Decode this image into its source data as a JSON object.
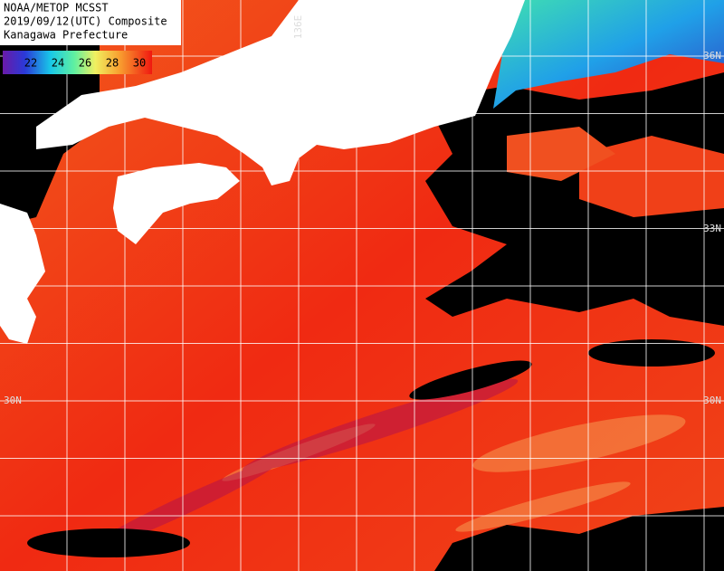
{
  "header": {
    "lines": [
      "NOAA/METOP MCSST",
      "2019/09/12(UTC) Composite",
      "Kanagawa Prefecture"
    ]
  },
  "colorbar": {
    "labels": [
      "22",
      "24",
      "26",
      "28",
      "30"
    ]
  },
  "grid_labels": {
    "lon": [
      "136E"
    ],
    "lat_right": [
      "36N",
      "33N",
      "30N"
    ],
    "lat_left": [
      "30N"
    ]
  }
}
